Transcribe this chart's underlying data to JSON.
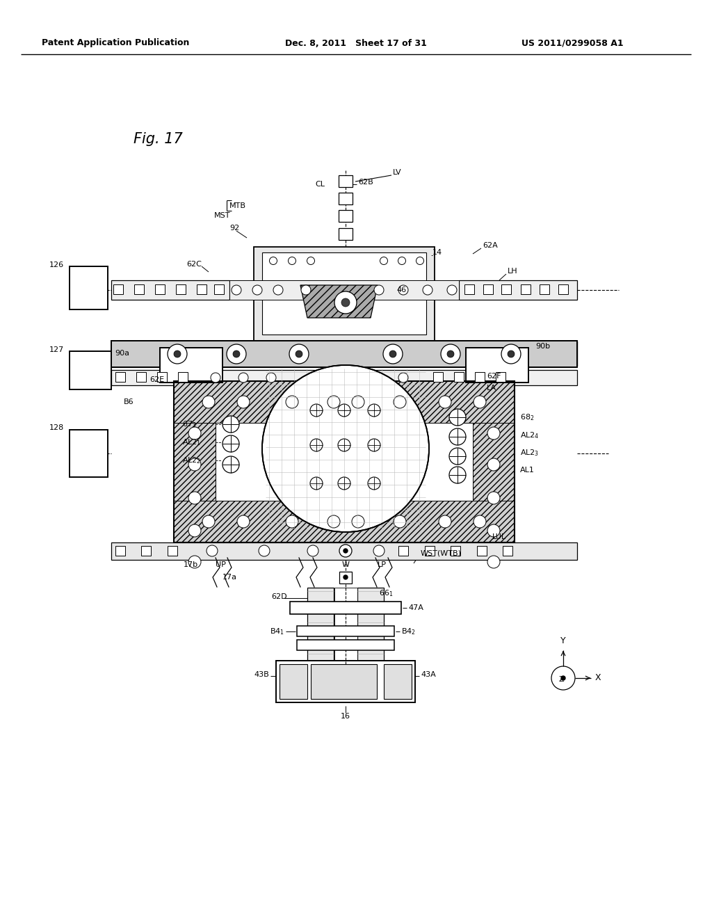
{
  "header_left": "Patent Application Publication",
  "header_mid": "Dec. 8, 2011   Sheet 17 of 31",
  "header_right": "US 2011/0299058 A1",
  "fig_title": "Fig. 17",
  "bg": "#ffffff"
}
